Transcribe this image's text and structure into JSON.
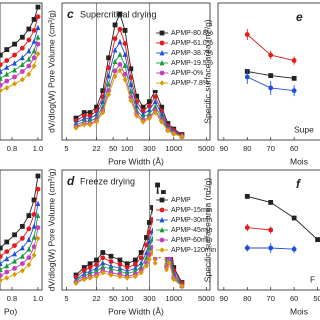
{
  "chart_data": [
    {
      "type": "line",
      "xlim": [
        0.708,
        1.031
      ],
      "ylim": [
        0,
        100
      ],
      "xticks": [
        0.8,
        {
          "value": 1,
          "label": "1.0"
        }
      ],
      "series": [
        {
          "color": "#222222",
          "marker": "square",
          "x": [
            0.71,
            0.76,
            0.82,
            0.88,
            0.93,
            0.97,
            1.0
          ],
          "values": [
            62,
            66,
            70,
            75,
            81,
            88,
            97
          ]
        },
        {
          "color": "#e31a1c",
          "marker": "circle",
          "x": [
            0.71,
            0.76,
            0.82,
            0.88,
            0.93,
            0.97,
            1.0
          ],
          "values": [
            55,
            58,
            62,
            67,
            73,
            80,
            90
          ]
        },
        {
          "color": "#1f4fd8",
          "marker": "triangle",
          "x": [
            0.71,
            0.76,
            0.82,
            0.88,
            0.93,
            0.97,
            1.0
          ],
          "values": [
            50,
            53,
            56,
            60,
            65,
            72,
            82
          ]
        },
        {
          "color": "#1a9a3a",
          "marker": "triangle",
          "x": [
            0.71,
            0.76,
            0.82,
            0.88,
            0.93,
            0.97,
            1.0
          ],
          "values": [
            45,
            48,
            51,
            55,
            59,
            65,
            75
          ]
        },
        {
          "color": "#c040c0",
          "marker": "circle",
          "x": [
            0.71,
            0.76,
            0.82,
            0.88,
            0.93,
            0.97,
            1.0
          ],
          "values": [
            40,
            43,
            46,
            50,
            54,
            60,
            70
          ]
        },
        {
          "color": "#d99a00",
          "marker": "diamond",
          "x": [
            0.71,
            0.76,
            0.82,
            0.88,
            0.93,
            0.97,
            1.0
          ],
          "values": [
            36,
            38,
            41,
            44,
            48,
            54,
            63
          ]
        }
      ]
    },
    {
      "type": "line",
      "xlabel": "Po)",
      "xlim": [
        0.708,
        1.031
      ],
      "ylim": [
        0,
        100
      ],
      "xticks": [
        0.8,
        {
          "value": 1,
          "label": "1.0"
        }
      ],
      "series": [
        {
          "color": "#222222",
          "marker": "square",
          "x": [
            0.71,
            0.76,
            0.82,
            0.88,
            0.93,
            0.97,
            1.0
          ],
          "values": [
            35,
            40,
            46,
            53,
            62,
            75,
            95
          ]
        },
        {
          "color": "#e31a1c",
          "marker": "circle",
          "x": [
            0.71,
            0.76,
            0.82,
            0.88,
            0.93,
            0.97,
            1.0
          ],
          "values": [
            28,
            32,
            37,
            43,
            51,
            63,
            84
          ]
        },
        {
          "color": "#1f4fd8",
          "marker": "triangle",
          "x": [
            0.71,
            0.76,
            0.82,
            0.88,
            0.93,
            0.97,
            1.0
          ],
          "values": [
            22,
            26,
            30,
            35,
            42,
            53,
            72
          ]
        },
        {
          "color": "#1a9a3a",
          "marker": "triangle",
          "x": [
            0.71,
            0.76,
            0.82,
            0.88,
            0.93,
            0.97,
            1.0
          ],
          "values": [
            17,
            20,
            24,
            28,
            34,
            44,
            62
          ]
        },
        {
          "color": "#c040c0",
          "marker": "circle",
          "x": [
            0.71,
            0.76,
            0.82,
            0.88,
            0.93,
            0.97,
            1.0
          ],
          "values": [
            12,
            15,
            18,
            22,
            27,
            36,
            52
          ]
        },
        {
          "color": "#d99a00",
          "marker": "diamond",
          "x": [
            0.71,
            0.76,
            0.82,
            0.88,
            0.93,
            0.97,
            1.0
          ],
          "values": [
            8,
            10,
            13,
            16,
            21,
            29,
            43
          ]
        }
      ]
    },
    {
      "type": "line",
      "panel_label": "c",
      "title": "Supercritical drying",
      "xlabel": "Pore Width (Å)",
      "ylabel": "dV/dlog(W) Pore Volume (cm³/g)",
      "xscale": "log",
      "xlim": [
        4,
        6000
      ],
      "ylim": [
        0,
        0.25
      ],
      "xticks": [
        5,
        22,
        50,
        100,
        300,
        1000,
        5000
      ],
      "reference_lines": [
        22,
        300
      ],
      "series": [
        {
          "name": "APMP-80.8%",
          "color": "#222222",
          "marker": "square",
          "x": [
            8,
            12,
            16,
            22,
            30,
            40,
            55,
            70,
            90,
            120,
            160,
            220,
            300,
            400,
            550,
            750,
            1000,
            1500
          ],
          "values": [
            0.04,
            0.05,
            0.05,
            0.06,
            0.09,
            0.15,
            0.21,
            0.23,
            0.2,
            0.13,
            0.08,
            0.06,
            0.07,
            0.09,
            0.06,
            0.03,
            0.02,
            0.01
          ]
        },
        {
          "name": "APMP-61.0%",
          "color": "#e31a1c",
          "marker": "circle",
          "x": [
            8,
            12,
            16,
            22,
            30,
            40,
            55,
            70,
            90,
            120,
            160,
            220,
            300,
            400,
            550,
            750,
            1000,
            1500
          ],
          "values": [
            0.035,
            0.044,
            0.044,
            0.053,
            0.079,
            0.132,
            0.185,
            0.202,
            0.176,
            0.114,
            0.07,
            0.053,
            0.062,
            0.079,
            0.053,
            0.026,
            0.018,
            0.009
          ]
        },
        {
          "name": "APMP-38.7%",
          "color": "#1f4fd8",
          "marker": "triangle",
          "x": [
            8,
            12,
            16,
            22,
            30,
            40,
            55,
            70,
            90,
            120,
            160,
            220,
            300,
            400,
            550,
            750,
            1000,
            1500
          ],
          "values": [
            0.031,
            0.039,
            0.039,
            0.047,
            0.07,
            0.117,
            0.164,
            0.179,
            0.156,
            0.101,
            0.062,
            0.047,
            0.055,
            0.07,
            0.047,
            0.023,
            0.016,
            0.008
          ]
        },
        {
          "name": "APMP-19.5%",
          "color": "#1a9a3a",
          "marker": "triangle",
          "x": [
            8,
            12,
            16,
            22,
            30,
            40,
            55,
            70,
            90,
            120,
            160,
            220,
            300,
            400,
            550,
            750,
            1000,
            1500
          ],
          "values": [
            0.027,
            0.034,
            0.034,
            0.041,
            0.061,
            0.102,
            0.143,
            0.156,
            0.136,
            0.088,
            0.054,
            0.041,
            0.048,
            0.061,
            0.041,
            0.02,
            0.014,
            0.007
          ]
        },
        {
          "name": "APMP-0%",
          "color": "#c040c0",
          "marker": "circle",
          "x": [
            8,
            12,
            16,
            22,
            30,
            40,
            55,
            70,
            90,
            120,
            160,
            220,
            300,
            400,
            550,
            750,
            1000,
            1500
          ],
          "values": [
            0.024,
            0.03,
            0.03,
            0.036,
            0.054,
            0.09,
            0.126,
            0.138,
            0.12,
            0.078,
            0.048,
            0.036,
            0.042,
            0.054,
            0.036,
            0.018,
            0.012,
            0.006
          ]
        },
        {
          "name": "APMP-7.8%",
          "color": "#d99a00",
          "marker": "diamond",
          "x": [
            8,
            12,
            16,
            22,
            30,
            40,
            55,
            70,
            90,
            120,
            160,
            220,
            300,
            400,
            550,
            750,
            1000,
            1500
          ],
          "values": [
            0.022,
            0.028,
            0.028,
            0.033,
            0.05,
            0.083,
            0.116,
            0.127,
            0.11,
            0.072,
            0.044,
            0.033,
            0.039,
            0.05,
            0.033,
            0.017,
            0.011,
            0.006
          ]
        }
      ]
    },
    {
      "type": "line",
      "panel_label": "d",
      "title": "Freeze drying",
      "xlabel": "Pore Width (Å)",
      "ylabel": "dV/dlog(W) Pore Volume (cm³/g)",
      "xscale": "log",
      "xlim": [
        4,
        6000
      ],
      "ylim": [
        0,
        0.16
      ],
      "xticks": [
        5,
        22,
        50,
        100,
        300,
        1000,
        5000
      ],
      "reference_lines": [
        22,
        300
      ],
      "series": [
        {
          "name": "APMP",
          "color": "#222222",
          "marker": "square",
          "x": [
            8,
            12,
            16,
            22,
            30,
            45,
            70,
            100,
            150,
            200,
            260,
            300,
            350,
            400,
            450,
            500,
            600,
            700,
            800,
            1000,
            1500
          ],
          "values": [
            0.02,
            0.03,
            0.035,
            0.04,
            0.05,
            0.045,
            0.04,
            0.035,
            0.04,
            0.05,
            0.07,
            0.09,
            0.11,
            0.08,
            0.14,
            0.1,
            0.13,
            0.06,
            0.08,
            0.03,
            0.01
          ]
        },
        {
          "name": "APMP-15min",
          "color": "#e31a1c",
          "marker": "circle",
          "x": [
            8,
            12,
            16,
            22,
            30,
            45,
            70,
            100,
            150,
            200,
            260,
            300,
            350,
            400,
            450,
            500,
            600,
            700,
            800,
            1000,
            1500
          ],
          "values": [
            0.017,
            0.026,
            0.03,
            0.034,
            0.043,
            0.038,
            0.034,
            0.03,
            0.034,
            0.043,
            0.06,
            0.077,
            0.094,
            0.068,
            0.119,
            0.085,
            0.111,
            0.051,
            0.068,
            0.026,
            0.009
          ]
        },
        {
          "name": "APMP-30min",
          "color": "#1f4fd8",
          "marker": "triangle",
          "x": [
            8,
            12,
            16,
            22,
            30,
            45,
            70,
            100,
            150,
            200,
            260,
            300,
            350,
            400,
            450,
            500,
            600,
            700,
            800,
            1000,
            1500
          ],
          "values": [
            0.014,
            0.022,
            0.025,
            0.029,
            0.036,
            0.032,
            0.029,
            0.025,
            0.029,
            0.036,
            0.05,
            0.065,
            0.079,
            0.058,
            0.101,
            0.072,
            0.094,
            0.043,
            0.058,
            0.022,
            0.007
          ]
        },
        {
          "name": "APMP-45min",
          "color": "#1a9a3a",
          "marker": "triangle",
          "x": [
            8,
            12,
            16,
            22,
            30,
            45,
            70,
            100,
            150,
            200,
            260,
            300,
            350,
            400,
            450,
            500,
            600,
            700,
            800,
            1000,
            1500
          ],
          "values": [
            0.012,
            0.019,
            0.022,
            0.025,
            0.031,
            0.028,
            0.025,
            0.022,
            0.025,
            0.031,
            0.043,
            0.056,
            0.068,
            0.05,
            0.087,
            0.062,
            0.081,
            0.037,
            0.05,
            0.019,
            0.006
          ]
        },
        {
          "name": "APMP-60min",
          "color": "#c040c0",
          "marker": "circle",
          "x": [
            8,
            12,
            16,
            22,
            30,
            45,
            70,
            100,
            150,
            200,
            260,
            300,
            350,
            400,
            450,
            500,
            600,
            700,
            800,
            1000,
            1500
          ],
          "values": [
            0.01,
            0.016,
            0.018,
            0.021,
            0.026,
            0.023,
            0.021,
            0.018,
            0.021,
            0.026,
            0.036,
            0.047,
            0.057,
            0.042,
            0.073,
            0.052,
            0.068,
            0.031,
            0.042,
            0.016,
            0.005
          ]
        },
        {
          "name": "APMP-120min",
          "color": "#d99a00",
          "marker": "diamond",
          "x": [
            8,
            12,
            16,
            22,
            30,
            45,
            70,
            100,
            150,
            200,
            260,
            300,
            350,
            400,
            450,
            500,
            600,
            700,
            800,
            1000,
            1500
          ],
          "values": [
            0.009,
            0.014,
            0.016,
            0.018,
            0.023,
            0.02,
            0.018,
            0.016,
            0.018,
            0.023,
            0.032,
            0.041,
            0.05,
            0.036,
            0.063,
            0.045,
            0.059,
            0.027,
            0.036,
            0.014,
            0.005
          ]
        }
      ]
    },
    {
      "type": "line",
      "panel_label": "e",
      "xlabel": "Mois",
      "ylabel": "Specific surface area (m²/g)",
      "annotation": "Supe",
      "xlim": [
        92.5,
        40
      ],
      "ylim": [
        0,
        100
      ],
      "xticks": [
        90,
        80,
        70,
        60
      ],
      "series": [
        {
          "color": "#222222",
          "marker": "square",
          "x": [
            80,
            70,
            60
          ],
          "values": [
            50,
            47,
            45
          ]
        },
        {
          "color": "#e31a1c",
          "marker": "circle",
          "x": [
            80,
            70,
            60
          ],
          "values": [
            77,
            62,
            58
          ],
          "errors": [
            4,
            3,
            3
          ]
        },
        {
          "color": "#1f4fd8",
          "marker": "circle",
          "x": [
            80,
            70,
            60
          ],
          "values": [
            46,
            38,
            36
          ],
          "errors": [
            5,
            5,
            4
          ]
        }
      ]
    },
    {
      "type": "line",
      "panel_label": "f",
      "xlabel": "Mois",
      "ylabel": "Specific surface area (m²/g)",
      "annotation": "F",
      "xlim": [
        92.5,
        40
      ],
      "ylim": [
        0,
        100
      ],
      "xticks": [
        90,
        80,
        70,
        60,
        50
      ],
      "series": [
        {
          "color": "#222222",
          "marker": "square",
          "x": [
            80,
            70,
            60,
            50
          ],
          "values": [
            78,
            73,
            60,
            42
          ]
        },
        {
          "color": "#e31a1c",
          "marker": "circle",
          "x": [
            80,
            70
          ],
          "values": [
            52,
            50
          ],
          "errors": [
            3,
            3
          ]
        },
        {
          "color": "#1f4fd8",
          "marker": "circle",
          "x": [
            80,
            70,
            60
          ],
          "values": [
            35,
            35,
            34
          ],
          "errors": [
            3,
            4,
            3
          ]
        }
      ]
    }
  ]
}
